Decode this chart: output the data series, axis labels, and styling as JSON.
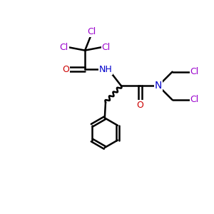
{
  "bg_color": "#ffffff",
  "atom_colors": {
    "C": "#000000",
    "N": "#0000cc",
    "O": "#cc0000",
    "Cl": "#9900cc",
    "H": "#000000"
  },
  "bond_color": "#000000",
  "bond_width": 1.8,
  "figsize": [
    3.0,
    3.0
  ],
  "dpi": 100
}
